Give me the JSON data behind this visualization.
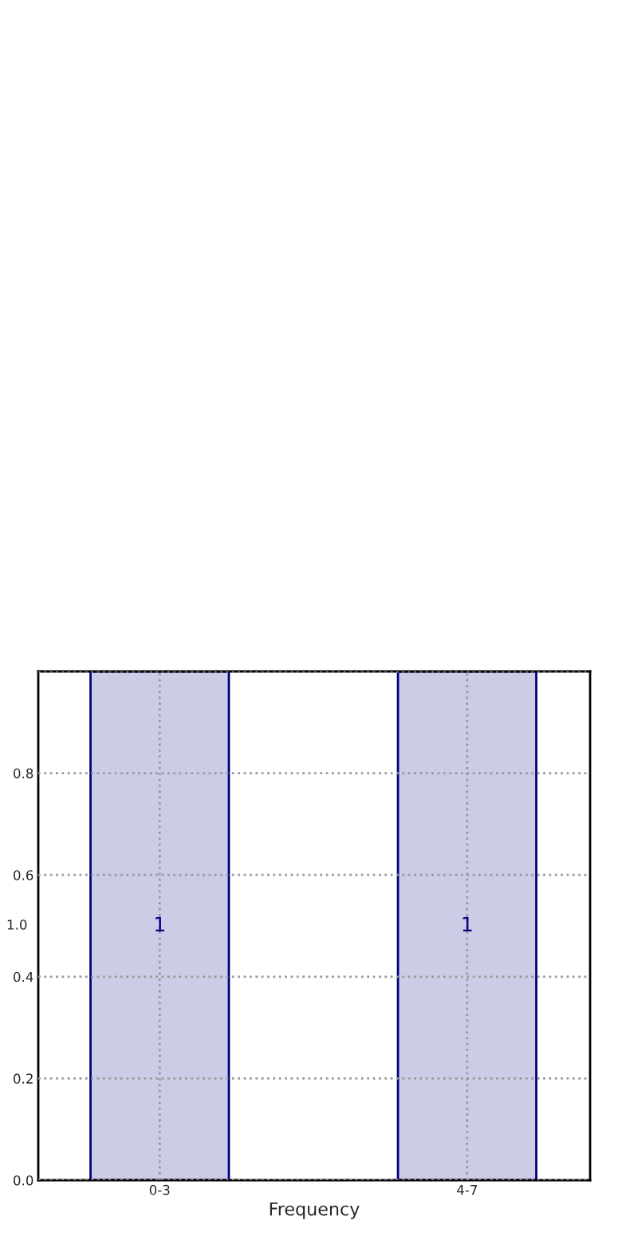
{
  "chart_data": {
    "type": "bar",
    "xlabel": "Frequency",
    "ylabel": "1.0",
    "categories": [
      "0-3",
      "4-7"
    ],
    "series": [
      {
        "color": "#cccce6",
        "values": [
          1,
          1
        ]
      }
    ],
    "value_labels": [
      "1",
      "1"
    ],
    "ylim": [
      0,
      1
    ],
    "yticks": [
      {
        "value": 0,
        "label": "0.0"
      },
      0.2,
      0.4,
      0.6,
      0.8,
      {
        "value": 1.0,
        "label": null
      }
    ],
    "grid": true
  }
}
